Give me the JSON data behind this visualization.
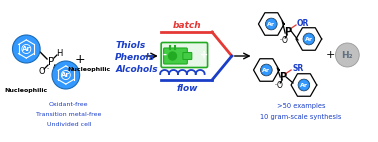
{
  "bg_color": "#ffffff",
  "ar_circle_color": "#3399ff",
  "ar_circle_edge": "#1a6ab5",
  "batch_color": "#e53935",
  "flow_color": "#1a3ec8",
  "green_color": "#22aa22",
  "green_fill": "#44cc44",
  "arrow_color": "#000000",
  "blue_text_color": "#1a3ec8",
  "h2_circle_color": "#c0c0c0",
  "h2_text_color": "#607080",
  "left_top_text": [
    "Thiols",
    "Phenols",
    "Alcohols"
  ],
  "blue_bottom_left": [
    "Oxidant-free",
    "Transition metal-free",
    "Undivided cell"
  ],
  "blue_bottom_right": [
    ">50 examples",
    "10 gram-scale synthesis"
  ],
  "batch_label": "batch",
  "flow_label": "flow",
  "or_label": "OR",
  "sr_label": "SR",
  "h2_label": "H₂"
}
